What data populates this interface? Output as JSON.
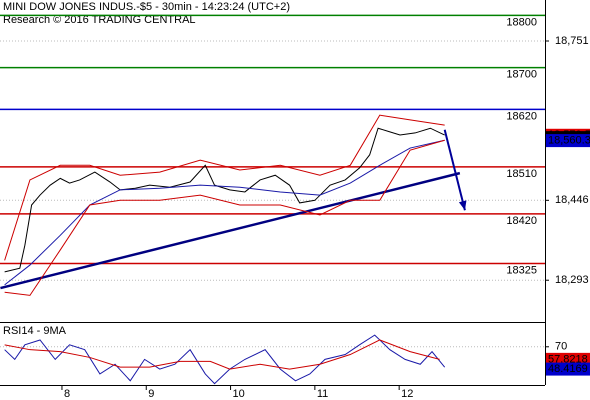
{
  "chart_data": [
    {
      "type": "line",
      "title": "MINI DOW JONES INDUS.-$5 - 30min - 14:23:24 (UTC+2)",
      "subtitle": "Research © 2016 TRADING CENTRAL",
      "xlim": [
        7.265,
        13.73
      ],
      "ylim": [
        18213,
        18829.5
      ],
      "yticks": [
        {
          "value": 18751,
          "label": "18,751"
        },
        {
          "value": 18446,
          "label": "18,446"
        },
        {
          "value": 18293,
          "label": "18,293"
        }
      ],
      "grid": true,
      "series": [
        {
          "color": "#000000",
          "x": [
            7.32,
            7.5,
            7.56,
            7.64,
            7.74,
            7.86,
            7.98,
            8.09,
            8.21,
            8.39,
            8.57,
            8.69,
            8.87,
            9.04,
            9.28,
            9.52,
            9.7,
            9.81,
            9.99,
            10.17,
            10.35,
            10.53,
            10.7,
            10.82,
            11.0,
            11.18,
            11.36,
            11.53,
            11.65,
            11.75,
            11.89,
            12.01,
            12.19,
            12.37,
            12.54
          ],
          "values": [
            18309,
            18316,
            18360,
            18437,
            18456,
            18475,
            18488,
            18479,
            18485,
            18500,
            18481,
            18466,
            18469,
            18475,
            18471,
            18481,
            18513,
            18475,
            18466,
            18462,
            18485,
            18494,
            18475,
            18441,
            18446,
            18475,
            18485,
            18508,
            18533,
            18584,
            18577,
            18571,
            18575,
            18584,
            18571
          ]
        },
        {
          "color": "#1a1aa8",
          "x": [
            7.32,
            7.62,
            7.98,
            8.33,
            8.69,
            9.16,
            9.64,
            10.11,
            10.59,
            11.06,
            11.42,
            11.77,
            12.13,
            12.54
          ],
          "values": [
            18284,
            18322,
            18379,
            18437,
            18466,
            18469,
            18475,
            18471,
            18462,
            18456,
            18479,
            18513,
            18546,
            18561
          ]
        },
        {
          "color": "#cc0000",
          "x": [
            7.32,
            7.62,
            7.98,
            8.33,
            8.69,
            9.16,
            9.64,
            10.11,
            10.59,
            11.06,
            11.42,
            11.77,
            12.13,
            12.54
          ],
          "values": [
            18331,
            18485,
            18513,
            18513,
            18494,
            18500,
            18523,
            18504,
            18513,
            18494,
            18513,
            18609,
            18600,
            18590
          ]
        },
        {
          "color": "#cc0000",
          "x": [
            7.32,
            7.62,
            7.98,
            8.33,
            8.69,
            9.16,
            9.64,
            10.11,
            10.59,
            11.06,
            11.42,
            11.77,
            12.13,
            12.54
          ],
          "values": [
            18270,
            18264,
            18351,
            18437,
            18446,
            18446,
            18456,
            18437,
            18437,
            18418,
            18446,
            18446,
            18542,
            18561
          ]
        }
      ],
      "levels": [
        {
          "value": 18800,
          "color": "#008000"
        },
        {
          "value": 18700,
          "color": "#008000"
        },
        {
          "value": 18620,
          "color": "#0000cc"
        },
        {
          "value": 18510,
          "color": "#cc0000"
        },
        {
          "value": 18420,
          "color": "#cc0000"
        },
        {
          "value": 18325,
          "color": "#cc0000"
        }
      ],
      "trendline": {
        "x": [
          7.27,
          12.72
        ],
        "values": [
          18278,
          18498
        ],
        "color": "#000080"
      },
      "arrow": {
        "x": [
          12.54,
          12.78
        ],
        "values": [
          18581,
          18427
        ],
        "color": "#000099"
      },
      "price_tags": [
        {
          "value": 18570.5,
          "label": "18,570.5",
          "color": "#e00000"
        },
        {
          "value": 18566,
          "label": "18,566",
          "color": "#000000"
        },
        {
          "value": 18560.3,
          "label": "18,560.3",
          "color": "#0000cc"
        }
      ]
    },
    {
      "type": "line",
      "title": "RSI14 - 9MA",
      "xlim": [
        7.265,
        13.73
      ],
      "ylim": [
        33,
        94
      ],
      "yticks": [
        70
      ],
      "xticks": [
        8,
        9,
        10,
        11,
        12
      ],
      "series": [
        {
          "color": "#1a1aa8",
          "x": [
            7.32,
            7.44,
            7.56,
            7.74,
            7.92,
            8.09,
            8.27,
            8.45,
            8.63,
            8.81,
            8.98,
            9.16,
            9.34,
            9.52,
            9.7,
            9.81,
            9.99,
            10.17,
            10.41,
            10.59,
            10.77,
            10.94,
            11.12,
            11.36,
            11.53,
            11.71,
            11.89,
            12.07,
            12.25,
            12.39,
            12.54
          ],
          "values": [
            67.2,
            57.8,
            71.9,
            76.6,
            57.8,
            71.9,
            67.2,
            43.7,
            53.1,
            37.1,
            57.8,
            48.4,
            53.1,
            67.2,
            43.7,
            34.3,
            48.4,
            57.8,
            67.2,
            48.4,
            37.1,
            43.7,
            57.8,
            62.5,
            71.9,
            81.3,
            67.2,
            57.8,
            53.1,
            65.3,
            50.3
          ]
        },
        {
          "color": "#cc0000",
          "x": [
            7.32,
            7.62,
            7.98,
            8.33,
            8.69,
            9.04,
            9.4,
            9.76,
            9.99,
            10.35,
            10.7,
            11.06,
            11.42,
            11.77,
            12.13,
            12.48
          ],
          "values": [
            71.9,
            67.2,
            65.3,
            59.7,
            50.3,
            50.3,
            55.9,
            55.9,
            48.4,
            53.1,
            48.4,
            53.1,
            62.5,
            76.6,
            65.3,
            57.8
          ]
        }
      ],
      "price_tags": [
        {
          "value": 57.8218,
          "label": "57.8218",
          "color": "#e00000"
        },
        {
          "value": 48.4169,
          "label": "48.4169",
          "color": "#0000cc"
        }
      ]
    }
  ]
}
